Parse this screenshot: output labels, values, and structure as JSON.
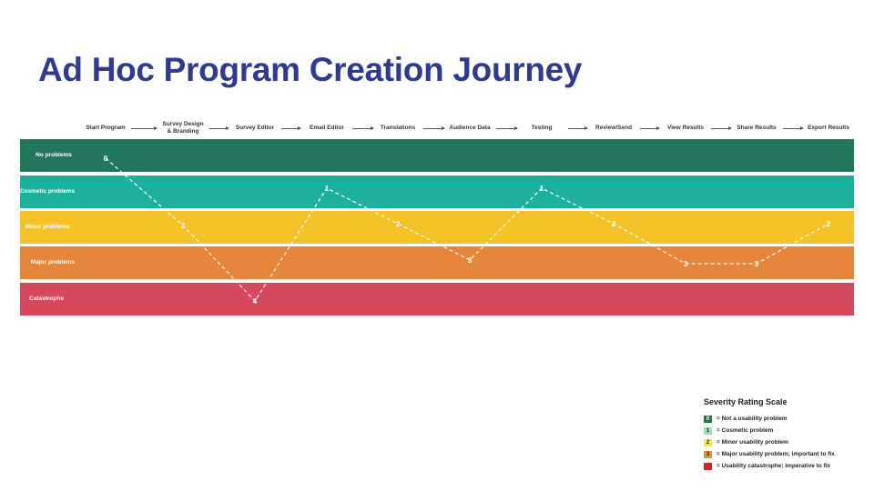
{
  "title": "Ad Hoc Program Creation Journey",
  "stages": [
    {
      "line1": "Start Program",
      "line2": ""
    },
    {
      "line1": "Survey Design",
      "line2": "& Branding"
    },
    {
      "line1": "Survey Editor",
      "line2": ""
    },
    {
      "line1": "Email Editor",
      "line2": ""
    },
    {
      "line1": "Translations",
      "line2": ""
    },
    {
      "line1": "Audience Data",
      "line2": ""
    },
    {
      "line1": "Testing",
      "line2": ""
    },
    {
      "line1": "Review/Send",
      "line2": ""
    },
    {
      "line1": "View Results",
      "line2": ""
    },
    {
      "line1": "Share Results",
      "line2": ""
    },
    {
      "line1": "Export Results",
      "line2": ""
    }
  ],
  "bands": [
    {
      "label": "No problems",
      "color": "#23775f"
    },
    {
      "label": "Cosmetic problems",
      "color": "#1db09c"
    },
    {
      "label": "Minor problems",
      "color": "#f5c228"
    },
    {
      "label": "Major problems",
      "color": "#e6863c"
    },
    {
      "label": "Catastrophe",
      "color": "#d5485e"
    }
  ],
  "journey_ratings": [
    0,
    2,
    4,
    1,
    2,
    3,
    1,
    2,
    3,
    3,
    2
  ],
  "journey_labels": [
    "0",
    "2",
    "4",
    "1",
    "2",
    "3",
    "1",
    "2",
    "3",
    "3",
    "2"
  ],
  "legend": {
    "title": "Severity Rating Scale",
    "items": [
      {
        "value": "0",
        "text": "= Not a usability problem",
        "color": "#1e7a3c",
        "text_color": "#ffffff"
      },
      {
        "value": "1",
        "text": "= Cosmetic problem",
        "color": "#9fe0b8",
        "text_color": "#222222"
      },
      {
        "value": "2",
        "text": "= Minor usability problem",
        "color": "#f7e63b",
        "text_color": "#222222"
      },
      {
        "value": "3",
        "text": "= Major usability problem; important to fix",
        "color": "#f08c2a",
        "text_color": "#222222"
      },
      {
        "value": "4",
        "text": "= Usability catastrophe; imperative to fix",
        "color": "#e0201e",
        "text_color": "#e0201e"
      }
    ]
  }
}
